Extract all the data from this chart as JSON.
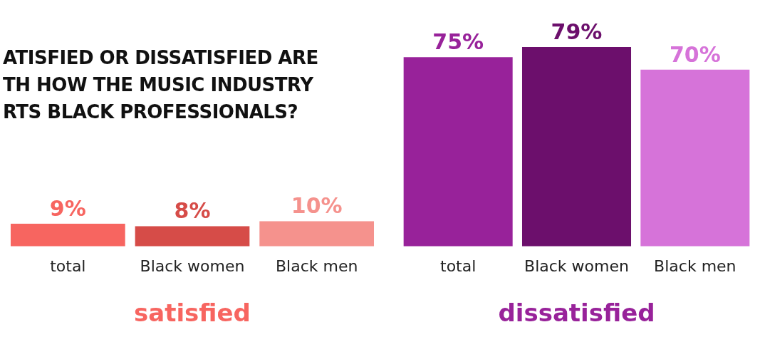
{
  "chart_data": [
    {
      "type": "bar",
      "title": "ATISFIED OR DISSATISFIED ARE\nTH HOW THE MUSIC INDUSTRY\nRTS BLACK PROFESSIONALS?",
      "xlabel": "satisfied",
      "categories": [
        "total",
        "Black women",
        "Black men"
      ],
      "values": [
        9,
        8,
        10
      ],
      "colors": [
        "#f76560",
        "#d64c48",
        "#f5928d"
      ],
      "value_labels": [
        "9%",
        "8%",
        "10%"
      ]
    },
    {
      "type": "bar",
      "xlabel": "dissatisfied",
      "categories": [
        "total",
        "Black women",
        "Black men"
      ],
      "values": [
        75,
        79,
        70
      ],
      "colors": [
        "#98229a",
        "#6c0f6c",
        "#d673d9"
      ],
      "value_labels": [
        "75%",
        "79%",
        "70%"
      ]
    }
  ]
}
